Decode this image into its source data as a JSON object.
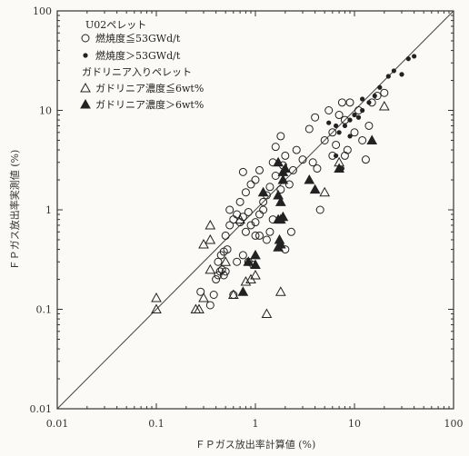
{
  "chart_data": {
    "type": "scatter",
    "title": "",
    "xlabel": "ＦＰガス放出率計算値 (%)",
    "ylabel": "ＦＰガス放出率実測値 (%)",
    "xscale": "log",
    "yscale": "log",
    "xlim": [
      0.01,
      100
    ],
    "ylim": [
      0.01,
      100
    ],
    "x_ticks": [
      "0.01",
      "0.1",
      "1",
      "10",
      "100"
    ],
    "y_ticks": [
      "0.01",
      "0.1",
      "1",
      "10",
      "100"
    ],
    "grid": false,
    "reference_line": "y=x",
    "legend_position": "top-left",
    "legend": {
      "group1_title": "U02ペレット",
      "group2_title": "ガドリニア入りペレット"
    },
    "colors": {
      "marker": "#222222",
      "line": "#444444"
    },
    "series": [
      {
        "name": "燃焼度≦53GWd/t",
        "marker": "open-circle",
        "points": [
          [
            0.28,
            0.15
          ],
          [
            0.35,
            0.11
          ],
          [
            0.38,
            0.14
          ],
          [
            0.4,
            0.2
          ],
          [
            0.42,
            0.22
          ],
          [
            0.44,
            0.24
          ],
          [
            0.46,
            0.25
          ],
          [
            0.48,
            0.22
          ],
          [
            0.5,
            0.24
          ],
          [
            0.42,
            0.3
          ],
          [
            0.45,
            0.35
          ],
          [
            0.48,
            0.38
          ],
          [
            0.52,
            0.4
          ],
          [
            0.6,
            0.14
          ],
          [
            0.65,
            0.3
          ],
          [
            0.75,
            0.35
          ],
          [
            0.85,
            0.3
          ],
          [
            0.95,
            0.28
          ],
          [
            0.5,
            0.55
          ],
          [
            0.55,
            0.7
          ],
          [
            0.6,
            0.8
          ],
          [
            0.65,
            0.9
          ],
          [
            0.7,
            0.75
          ],
          [
            0.75,
            0.85
          ],
          [
            0.8,
            0.6
          ],
          [
            0.85,
            0.95
          ],
          [
            0.9,
            0.7
          ],
          [
            1.0,
            0.55
          ],
          [
            1.1,
            0.9
          ],
          [
            1.2,
            1.0
          ],
          [
            1.3,
            0.5
          ],
          [
            1.4,
            0.6
          ],
          [
            1.5,
            0.8
          ],
          [
            0.55,
            1.0
          ],
          [
            0.7,
            1.2
          ],
          [
            0.8,
            1.5
          ],
          [
            0.9,
            1.8
          ],
          [
            1.0,
            2.0
          ],
          [
            1.1,
            2.5
          ],
          [
            1.2,
            1.2
          ],
          [
            1.3,
            1.4
          ],
          [
            1.4,
            1.7
          ],
          [
            1.5,
            3.0
          ],
          [
            1.6,
            2.2
          ],
          [
            1.8,
            1.6
          ],
          [
            1.9,
            2.8
          ],
          [
            2.0,
            3.5
          ],
          [
            2.2,
            1.8
          ],
          [
            2.4,
            2.5
          ],
          [
            2.6,
            4.0
          ],
          [
            0.75,
            2.4
          ],
          [
            1.6,
            4.3
          ],
          [
            1.8,
            5.5
          ],
          [
            2.3,
            0.6
          ],
          [
            2.0,
            0.4
          ],
          [
            3.0,
            3.2
          ],
          [
            3.5,
            6.5
          ],
          [
            4.0,
            8.5
          ],
          [
            4.2,
            2.6
          ],
          [
            4.5,
            1.0
          ],
          [
            5.0,
            5.0
          ],
          [
            5.5,
            10.0
          ],
          [
            6.0,
            6.0
          ],
          [
            6.5,
            4.5
          ],
          [
            7.0,
            9.0
          ],
          [
            7.5,
            12.0
          ],
          [
            8.0,
            3.5
          ],
          [
            8.5,
            4.0
          ],
          [
            9.0,
            12.0
          ],
          [
            10.0,
            6.0
          ],
          [
            11.0,
            10.0
          ],
          [
            12.0,
            5.0
          ],
          [
            13.0,
            3.2
          ],
          [
            14.0,
            7.0
          ],
          [
            15.0,
            12.0
          ],
          [
            17.0,
            14.0
          ],
          [
            20.0,
            15.0
          ],
          [
            8.0,
            8.0
          ],
          [
            6.0,
            3.5
          ],
          [
            3.8,
            3.0
          ],
          [
            1.1,
            0.55
          ],
          [
            1.0,
            0.75
          ]
        ]
      },
      {
        "name": "燃焼度＞53GWd/t",
        "marker": "filled-circle",
        "points": [
          [
            6.5,
            7.0
          ],
          [
            7.0,
            6.0
          ],
          [
            8.0,
            7.0
          ],
          [
            9.0,
            8.0
          ],
          [
            10.0,
            9.0
          ],
          [
            11.0,
            8.5
          ],
          [
            12.0,
            10.0
          ],
          [
            14.0,
            12.0
          ],
          [
            16.0,
            14.0
          ],
          [
            18.0,
            17.0
          ],
          [
            22.0,
            22.0
          ],
          [
            25.0,
            25.0
          ],
          [
            30.0,
            23.0
          ],
          [
            35.0,
            33.0
          ],
          [
            40.0,
            35.0
          ],
          [
            9.0,
            5.5
          ],
          [
            7.5,
            2.6
          ],
          [
            6.5,
            3.5
          ],
          [
            5.5,
            7.5
          ],
          [
            12.0,
            13.0
          ]
        ]
      },
      {
        "name": "ガドリニア濃度≦6wt%",
        "marker": "open-triangle",
        "points": [
          [
            0.1,
            0.13
          ],
          [
            0.1,
            0.1
          ],
          [
            0.25,
            0.1
          ],
          [
            0.27,
            0.1
          ],
          [
            0.3,
            0.13
          ],
          [
            0.35,
            0.25
          ],
          [
            0.3,
            0.45
          ],
          [
            0.35,
            0.5
          ],
          [
            0.5,
            0.3
          ],
          [
            0.6,
            0.14
          ],
          [
            0.8,
            0.19
          ],
          [
            0.9,
            0.2
          ],
          [
            1.0,
            0.22
          ],
          [
            1.3,
            0.09
          ],
          [
            1.8,
            0.15
          ],
          [
            0.35,
            0.7
          ],
          [
            0.7,
            0.8
          ],
          [
            7.0,
            3.0
          ],
          [
            5.0,
            1.5
          ],
          [
            20.0,
            11.0
          ]
        ]
      },
      {
        "name": "ガドリニア濃度＞6wt%",
        "marker": "filled-triangle",
        "points": [
          [
            0.75,
            0.15
          ],
          [
            0.85,
            0.3
          ],
          [
            1.0,
            0.28
          ],
          [
            1.0,
            0.35
          ],
          [
            1.7,
            0.42
          ],
          [
            1.75,
            0.5
          ],
          [
            1.8,
            0.45
          ],
          [
            1.8,
            0.8
          ],
          [
            1.7,
            0.8
          ],
          [
            1.9,
            0.85
          ],
          [
            1.8,
            1.2
          ],
          [
            1.7,
            1.4
          ],
          [
            1.9,
            2.4
          ],
          [
            2.0,
            2.6
          ],
          [
            1.7,
            3.0
          ],
          [
            1.2,
            1.5
          ],
          [
            1.9,
            2.0
          ],
          [
            3.5,
            2.0
          ],
          [
            4.0,
            1.6
          ],
          [
            7.0,
            2.6
          ],
          [
            15.0,
            5.0
          ]
        ]
      }
    ]
  }
}
